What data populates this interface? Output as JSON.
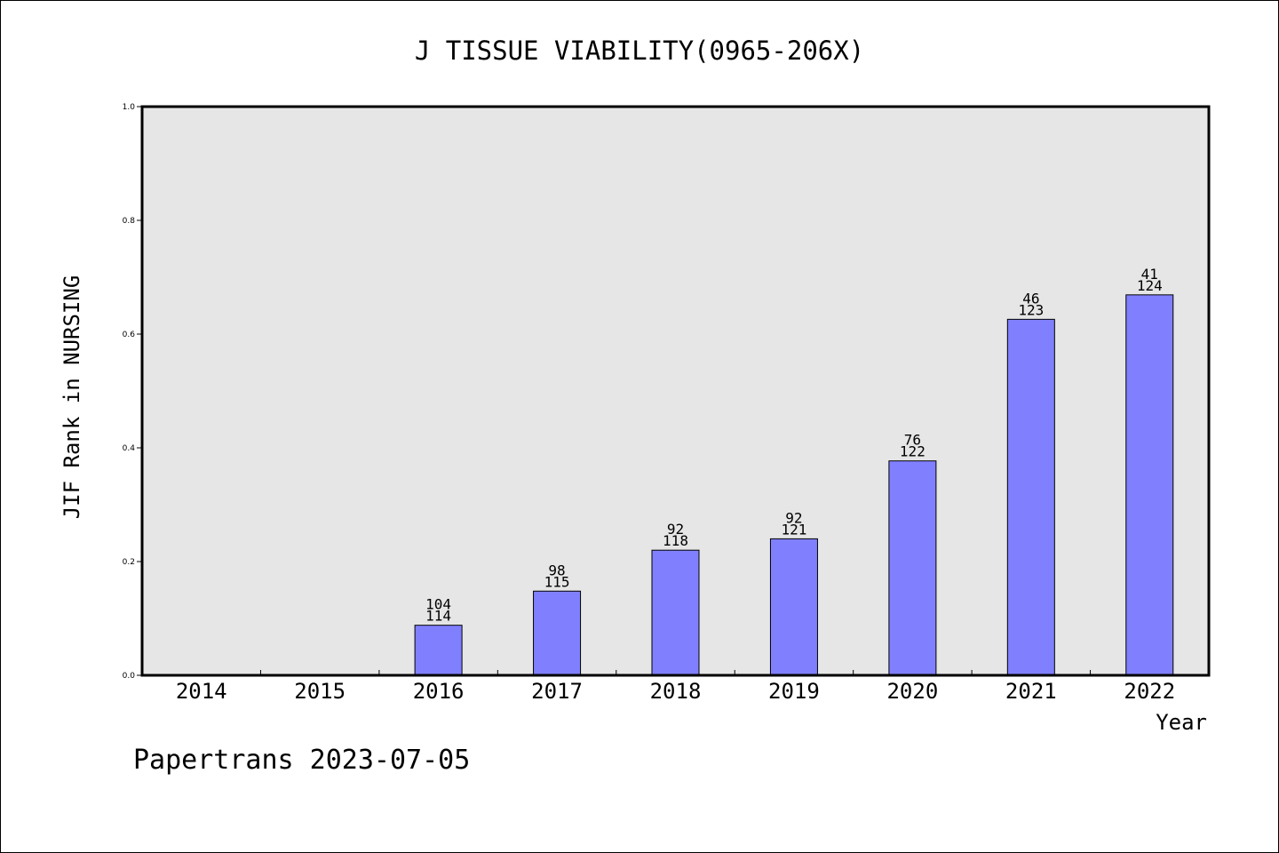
{
  "chart_data": {
    "type": "bar",
    "title": "J TISSUE VIABILITY(0965-206X)",
    "xlabel": "Year",
    "ylabel": "JIF Rank in NURSING",
    "ylim": [
      0.0,
      1.0
    ],
    "yticks": [
      "0.0",
      "0.2",
      "0.4",
      "0.6",
      "0.8",
      "1.0"
    ],
    "categories": [
      "2014",
      "2015",
      "2016",
      "2017",
      "2018",
      "2019",
      "2020",
      "2021",
      "2022"
    ],
    "values": [
      null,
      null,
      0.088,
      0.148,
      0.22,
      0.24,
      0.377,
      0.626,
      0.669
    ],
    "rank": [
      null,
      null,
      "104",
      "98",
      "92",
      "92",
      "76",
      "46",
      "41"
    ],
    "total": [
      null,
      null,
      "114",
      "115",
      "118",
      "121",
      "122",
      "123",
      "124"
    ],
    "grid": false,
    "colors": {
      "bar": "#8080ff",
      "plot_background": "#e6e6e6",
      "axis": "#000000"
    }
  },
  "footer": {
    "watermark": "Papertrans 2023-07-05"
  }
}
